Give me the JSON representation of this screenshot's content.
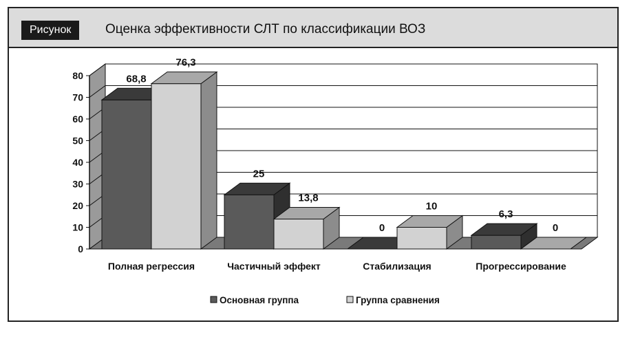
{
  "header": {
    "badge": "Рисунок",
    "title": "Оценка эффективности СЛТ по классификации ВОЗ"
  },
  "colors": {
    "series_main": "#5a5a5a",
    "series_compare": "#d2d2d2",
    "header_bg": "#dcdcdc"
  },
  "chart_data": {
    "type": "bar",
    "title": "",
    "categories": [
      "Полная регрессия",
      "Частичный эффект",
      "Стабилизация",
      "Прогрессирование"
    ],
    "series": [
      {
        "name": "Основная группа",
        "values": [
          68.8,
          25,
          0,
          6.3
        ],
        "labels": [
          "68,8",
          "25",
          "0",
          "6,3"
        ]
      },
      {
        "name": "Группа сравнения",
        "values": [
          76.3,
          13.8,
          10,
          0
        ],
        "labels": [
          "76,3",
          "13,8",
          "10",
          "0"
        ]
      }
    ],
    "ylim": [
      0,
      80
    ],
    "yticks": [
      "0",
      "10",
      "20",
      "30",
      "40",
      "50",
      "60",
      "70",
      "80"
    ],
    "grid": true,
    "legend": "bottom",
    "three_d": true
  }
}
